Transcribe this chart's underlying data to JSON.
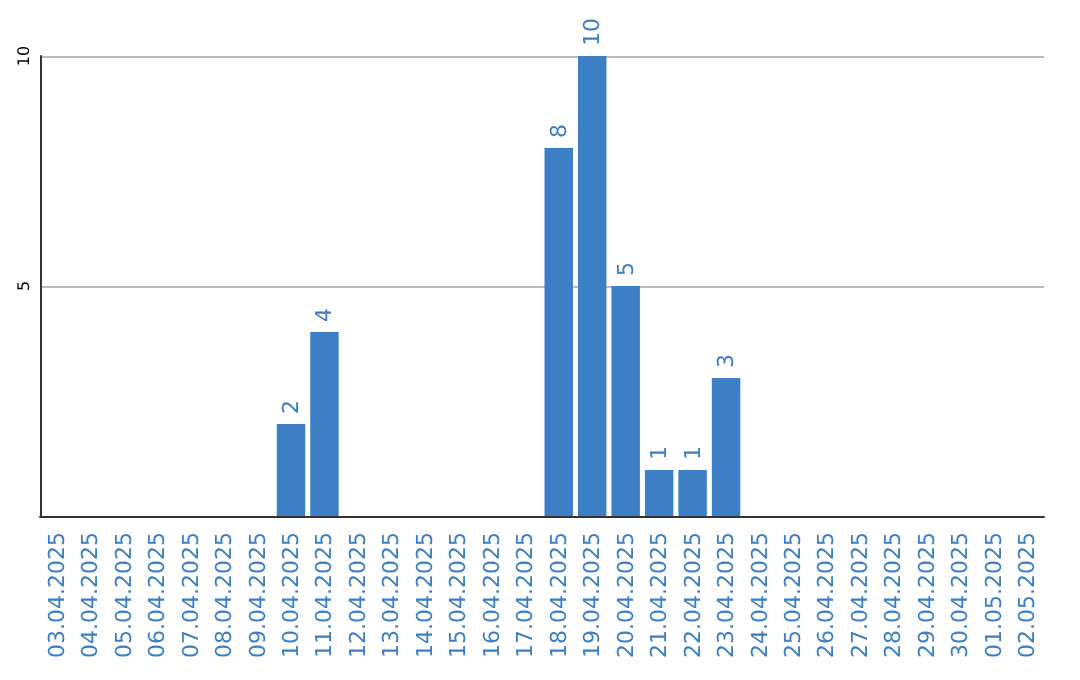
{
  "chart_data": {
    "type": "bar",
    "categories": [
      "03.04.2025",
      "04.04.2025",
      "05.04.2025",
      "06.04.2025",
      "07.04.2025",
      "08.04.2025",
      "09.04.2025",
      "10.04.2025",
      "11.04.2025",
      "12.04.2025",
      "13.04.2025",
      "14.04.2025",
      "15.04.2025",
      "16.04.2025",
      "17.04.2025",
      "18.04.2025",
      "19.04.2025",
      "20.04.2025",
      "21.04.2025",
      "22.04.2025",
      "23.04.2025",
      "24.04.2025",
      "25.04.2025",
      "26.04.2025",
      "27.04.2025",
      "28.04.2025",
      "29.04.2025",
      "30.04.2025",
      "01.05.2025",
      "02.05.2025"
    ],
    "values": [
      0,
      0,
      0,
      0,
      0,
      0,
      0,
      2,
      4,
      0,
      0,
      0,
      0,
      0,
      0,
      8,
      10,
      5,
      1,
      1,
      3,
      0,
      0,
      0,
      0,
      0,
      0,
      0,
      0,
      0
    ],
    "value_labels": [
      null,
      null,
      null,
      null,
      null,
      null,
      null,
      "2",
      "4",
      null,
      null,
      null,
      null,
      null,
      null,
      "8",
      "10",
      "5",
      "1",
      "1",
      "3",
      null,
      null,
      null,
      null,
      null,
      null,
      null,
      null,
      null
    ],
    "color": "#3d7fc4",
    "ylim": [
      0,
      10
    ],
    "yticks": [
      5,
      10
    ],
    "grid": "y"
  }
}
